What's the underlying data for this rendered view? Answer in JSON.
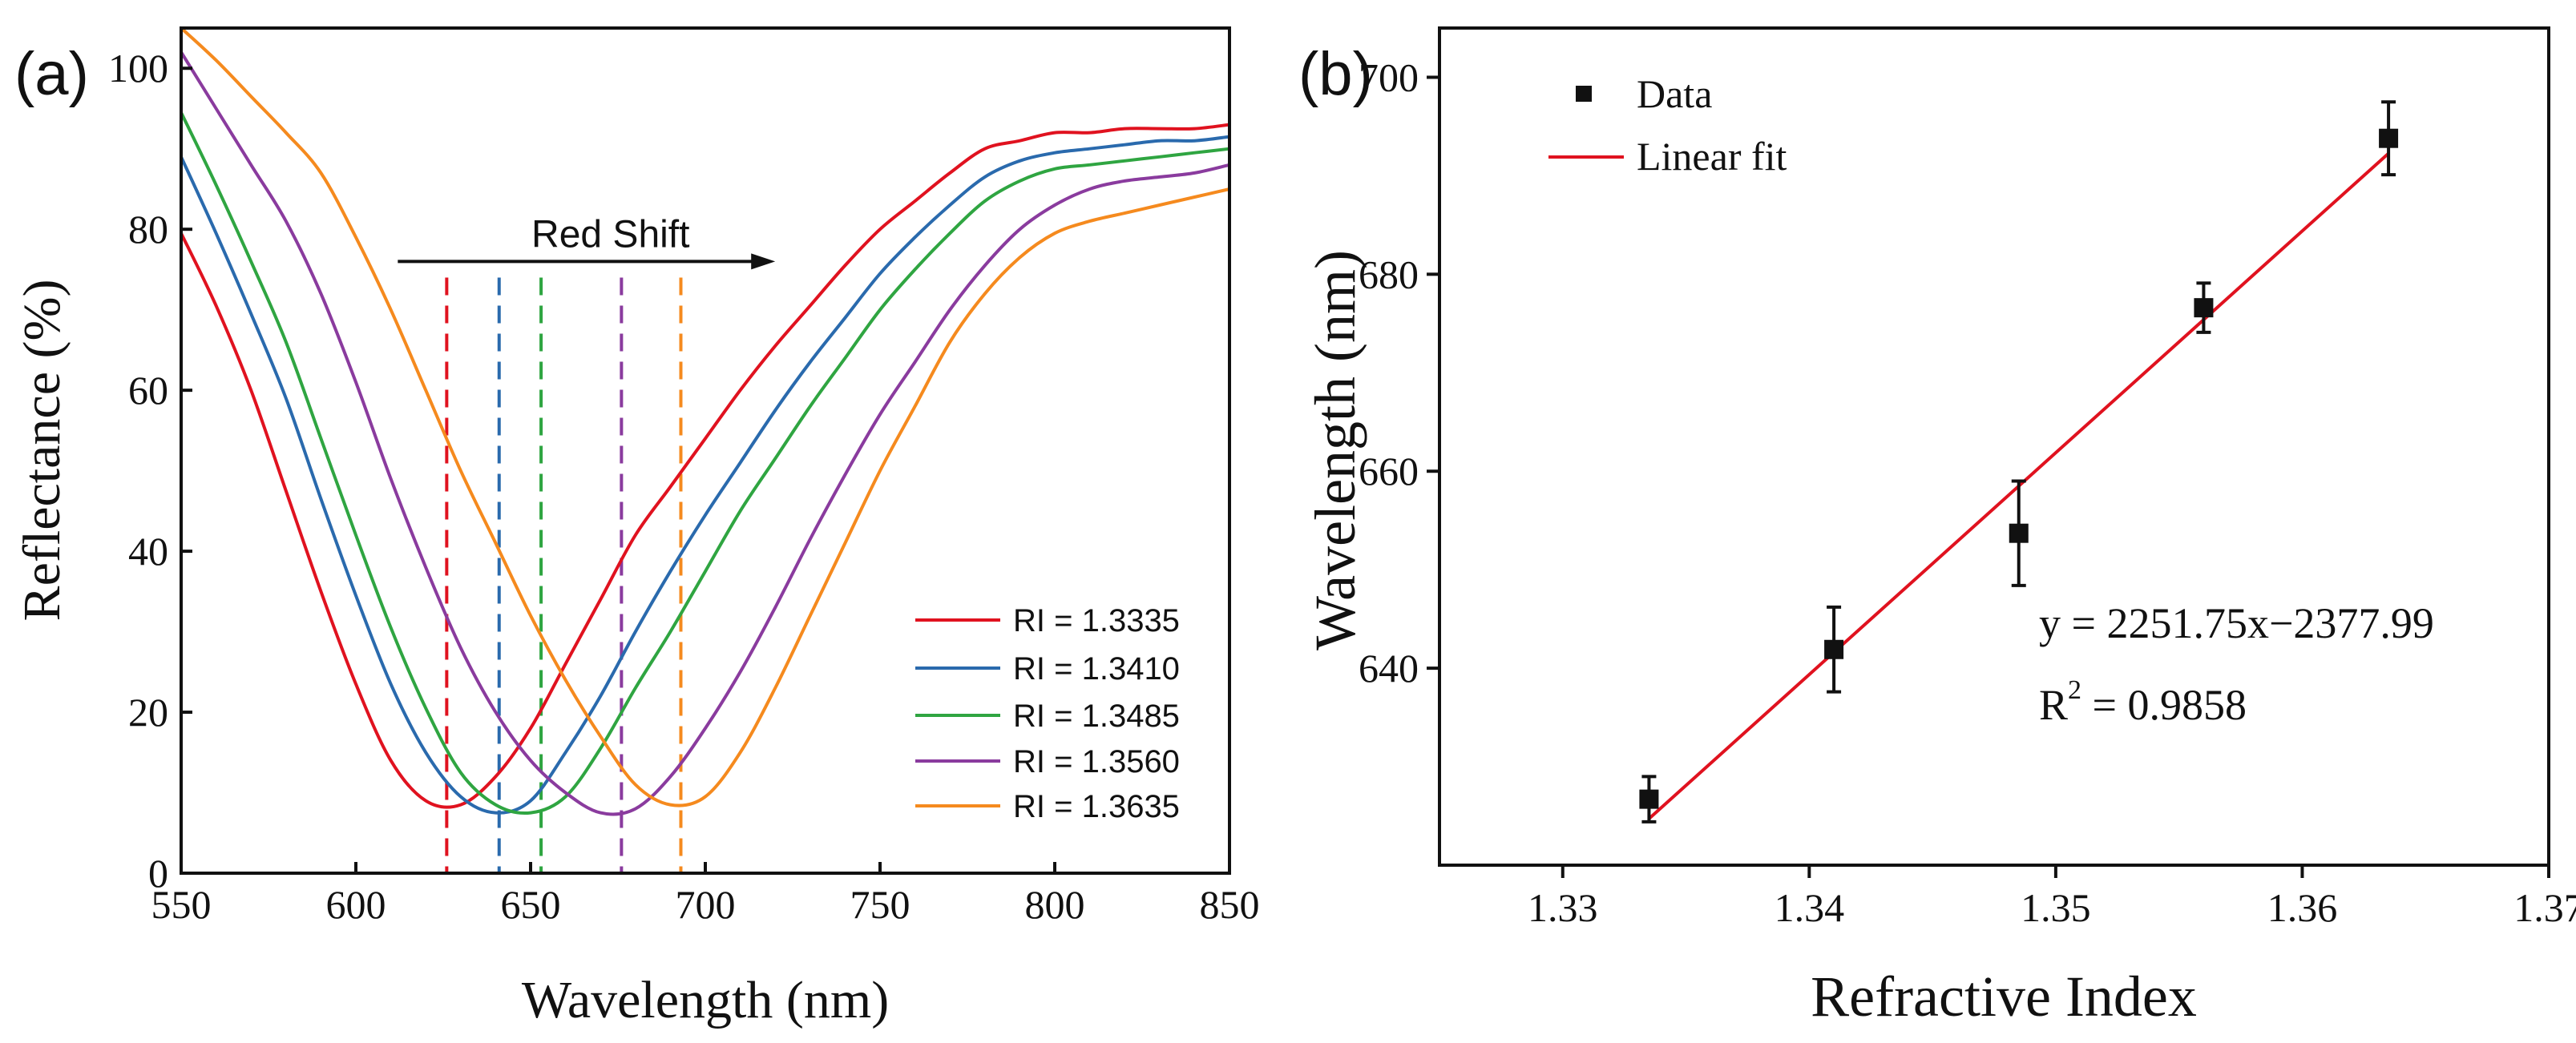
{
  "chart_data": [
    {
      "panel_label": "(a)",
      "type": "line",
      "xlabel": "Wavelength (nm)",
      "ylabel": "Reflectance (%)",
      "xlim": [
        550,
        850
      ],
      "ylim": [
        0,
        105
      ],
      "xticks": [
        "550",
        "600",
        "650",
        "700",
        "750",
        "800",
        "850"
      ],
      "yticks": [
        "0",
        "20",
        "40",
        "60",
        "80",
        "100"
      ],
      "x": [
        550,
        560,
        570,
        580,
        590,
        600,
        610,
        620,
        630,
        640,
        650,
        660,
        670,
        680,
        690,
        700,
        710,
        720,
        730,
        740,
        750,
        760,
        770,
        780,
        790,
        800,
        810,
        820,
        830,
        840,
        850
      ],
      "series": [
        {
          "name": "RI = 1.3335",
          "color": "#e0121f",
          "dip_wavelength": 626,
          "values": [
            79.5,
            70.5,
            60,
            47.5,
            35,
            23.5,
            14,
            9,
            8.5,
            12,
            18,
            26,
            34,
            42,
            48,
            54,
            60,
            65.5,
            70.5,
            75.5,
            80,
            83.5,
            87,
            90,
            91,
            92,
            92,
            92.5,
            92.5,
            92.5,
            93
          ]
        },
        {
          "name": "RI = 1.3410",
          "color": "#2a6aad",
          "dip_wavelength": 641,
          "values": [
            89,
            79.5,
            69.5,
            59,
            46.5,
            34.5,
            23.5,
            15,
            9.5,
            7.5,
            9,
            15,
            22,
            30,
            37.5,
            44.5,
            51,
            57.5,
            63.5,
            69,
            74.5,
            79,
            83,
            86.5,
            88.5,
            89.5,
            90,
            90.5,
            91,
            91,
            91.5
          ]
        },
        {
          "name": "RI = 1.3485",
          "color": "#2fa541",
          "dip_wavelength": 653,
          "values": [
            94.5,
            85.5,
            76,
            66,
            54,
            42,
            30.5,
            20.5,
            12.5,
            8.5,
            7.5,
            9.5,
            15.5,
            23,
            30,
            37.5,
            45,
            51.5,
            58,
            64,
            70,
            75,
            79.5,
            83.5,
            86,
            87.5,
            88,
            88.5,
            89,
            89.5,
            90
          ]
        },
        {
          "name": "RI = 1.3560",
          "color": "#8a3b9e",
          "dip_wavelength": 676,
          "values": [
            102,
            95,
            88,
            81,
            72,
            61,
            49,
            38,
            28,
            20,
            14,
            10,
            7.5,
            8,
            12,
            18,
            25,
            33,
            41.5,
            49.5,
            57,
            63.5,
            70,
            75.5,
            80,
            83,
            85,
            86,
            86.5,
            87,
            88
          ]
        },
        {
          "name": "RI = 1.3635",
          "color": "#f58a1e",
          "dip_wavelength": 693,
          "values": [
            105,
            101,
            96.5,
            92,
            87,
            79,
            70,
            60,
            50,
            41,
            32,
            24,
            17,
            11,
            8.5,
            9.5,
            15,
            23,
            32,
            41,
            50,
            58,
            66,
            72,
            76.5,
            79.5,
            81,
            82,
            83,
            84,
            85
          ]
        }
      ],
      "annotation": {
        "text": "Red Shift",
        "from_x": 612,
        "to_x": 720,
        "y": 76
      }
    },
    {
      "panel_label": "(b)",
      "type": "scatter",
      "xlabel": "Refractive Index",
      "ylabel": "Wavelength (nm)",
      "xlim": [
        1.325,
        1.37
      ],
      "ylim": [
        620,
        705
      ],
      "xticks": [
        "1.33",
        "1.34",
        "1.35",
        "1.36",
        "1.37"
      ],
      "yticks": [
        "640",
        "660",
        "680",
        "700"
      ],
      "points": [
        {
          "x": 1.3335,
          "y": 626.7,
          "err": 2.3
        },
        {
          "x": 1.341,
          "y": 641.9,
          "err": 4.3
        },
        {
          "x": 1.3485,
          "y": 653.7,
          "err": 5.3
        },
        {
          "x": 1.356,
          "y": 676.6,
          "err": 2.5
        },
        {
          "x": 1.3635,
          "y": 693.8,
          "err": 3.7
        }
      ],
      "fit": {
        "slope": 2251.75,
        "intercept": -2377.99,
        "x_range": [
          1.3335,
          1.3635
        ],
        "color": "#e0121f"
      },
      "legend": [
        {
          "label": "Data",
          "marker": "square"
        },
        {
          "label": "Linear fit",
          "marker": "line"
        }
      ],
      "equation_text": "y = 2251.75x−2377.99",
      "r2_label": "R",
      "r2_sup": "2",
      "r2_value": " = 0.9858"
    }
  ]
}
